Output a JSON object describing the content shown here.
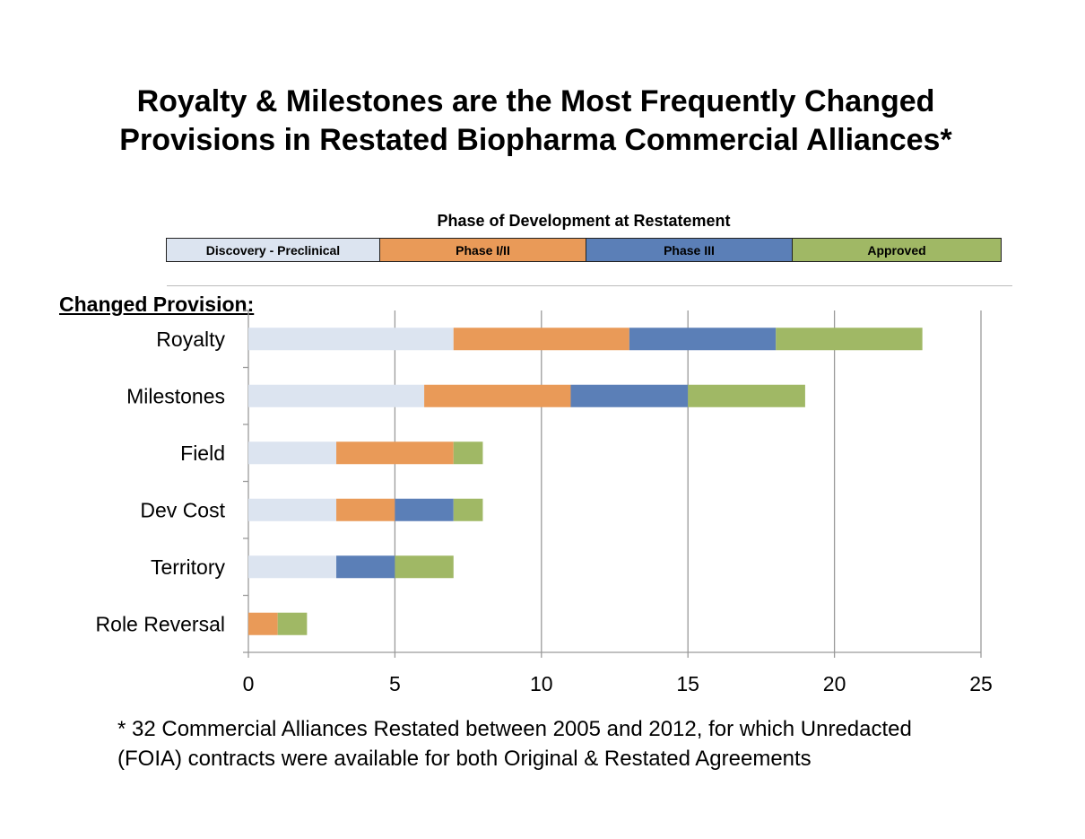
{
  "chart_data": {
    "type": "bar",
    "orientation": "horizontal",
    "stacked": true,
    "title": "Royalty & Milestones are the Most Frequently Changed Provisions in Restated Biopharma Commercial Alliances*",
    "title_lines": [
      "Royalty & Milestones are the Most Frequently Changed",
      "Provisions in Restated Biopharma Commercial Alliances*"
    ],
    "legend_title": "Phase of Development at Restatement",
    "legend_placement": "top",
    "ylabel": "Changed Provision:",
    "xlabel": "",
    "categories": [
      "Royalty",
      "Milestones",
      "Field",
      "Dev Cost",
      "Territory",
      "Role Reversal"
    ],
    "series": [
      {
        "name": "Discovery - Preclinical",
        "color": "#dce4f0",
        "values": [
          7,
          6,
          3,
          3,
          3,
          0
        ]
      },
      {
        "name": "Phase I/II",
        "color": "#e99a58",
        "values": [
          6,
          5,
          4,
          2,
          0,
          1
        ]
      },
      {
        "name": "Phase III",
        "color": "#5b7fb7",
        "values": [
          5,
          4,
          0,
          2,
          2,
          0
        ]
      },
      {
        "name": "Approved",
        "color": "#a0b865",
        "values": [
          5,
          4,
          1,
          1,
          2,
          1
        ]
      }
    ],
    "xlim": [
      0,
      25
    ],
    "xticks": [
      0,
      5,
      10,
      15,
      20,
      25
    ],
    "grid": "vertical",
    "footnote_lines": [
      "* 32 Commercial Alliances Restated between 2005 and 2012, for which Unredacted",
      "(FOIA) contracts  were available for both Original & Restated Agreements"
    ]
  }
}
